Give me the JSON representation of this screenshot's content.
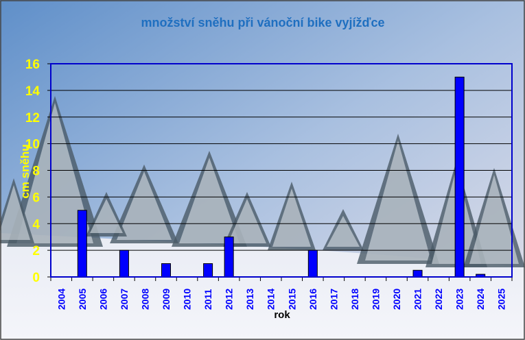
{
  "chart_data": {
    "type": "bar",
    "title": "množství sněhu při vánoční bike vyjížďce",
    "xlabel": "rok",
    "ylabel": "cm sněhu",
    "categories": [
      "2004",
      "2005",
      "2006",
      "2007",
      "2008",
      "2009",
      "2010",
      "2011",
      "2012",
      "2013",
      "2014",
      "2015",
      "2016",
      "2017",
      "2018",
      "2019",
      "2020",
      "2021",
      "2022",
      "2023",
      "2024",
      "2025"
    ],
    "values": [
      0,
      5,
      0,
      2,
      0,
      1,
      0,
      1,
      3,
      0,
      0,
      0,
      2,
      0,
      0,
      0,
      0,
      0.5,
      0,
      15,
      0.2,
      0
    ],
    "ylim": [
      0,
      16
    ],
    "yticks": [
      0,
      2,
      4,
      6,
      8,
      10,
      12,
      14,
      16
    ],
    "grid": true,
    "colors": {
      "bar": "#0000ff",
      "bar_outline": "#000000",
      "axis": "#0000cc",
      "title": "#1f6fc0",
      "ytick": "#ffff00",
      "xtick": "#0000ff"
    }
  }
}
